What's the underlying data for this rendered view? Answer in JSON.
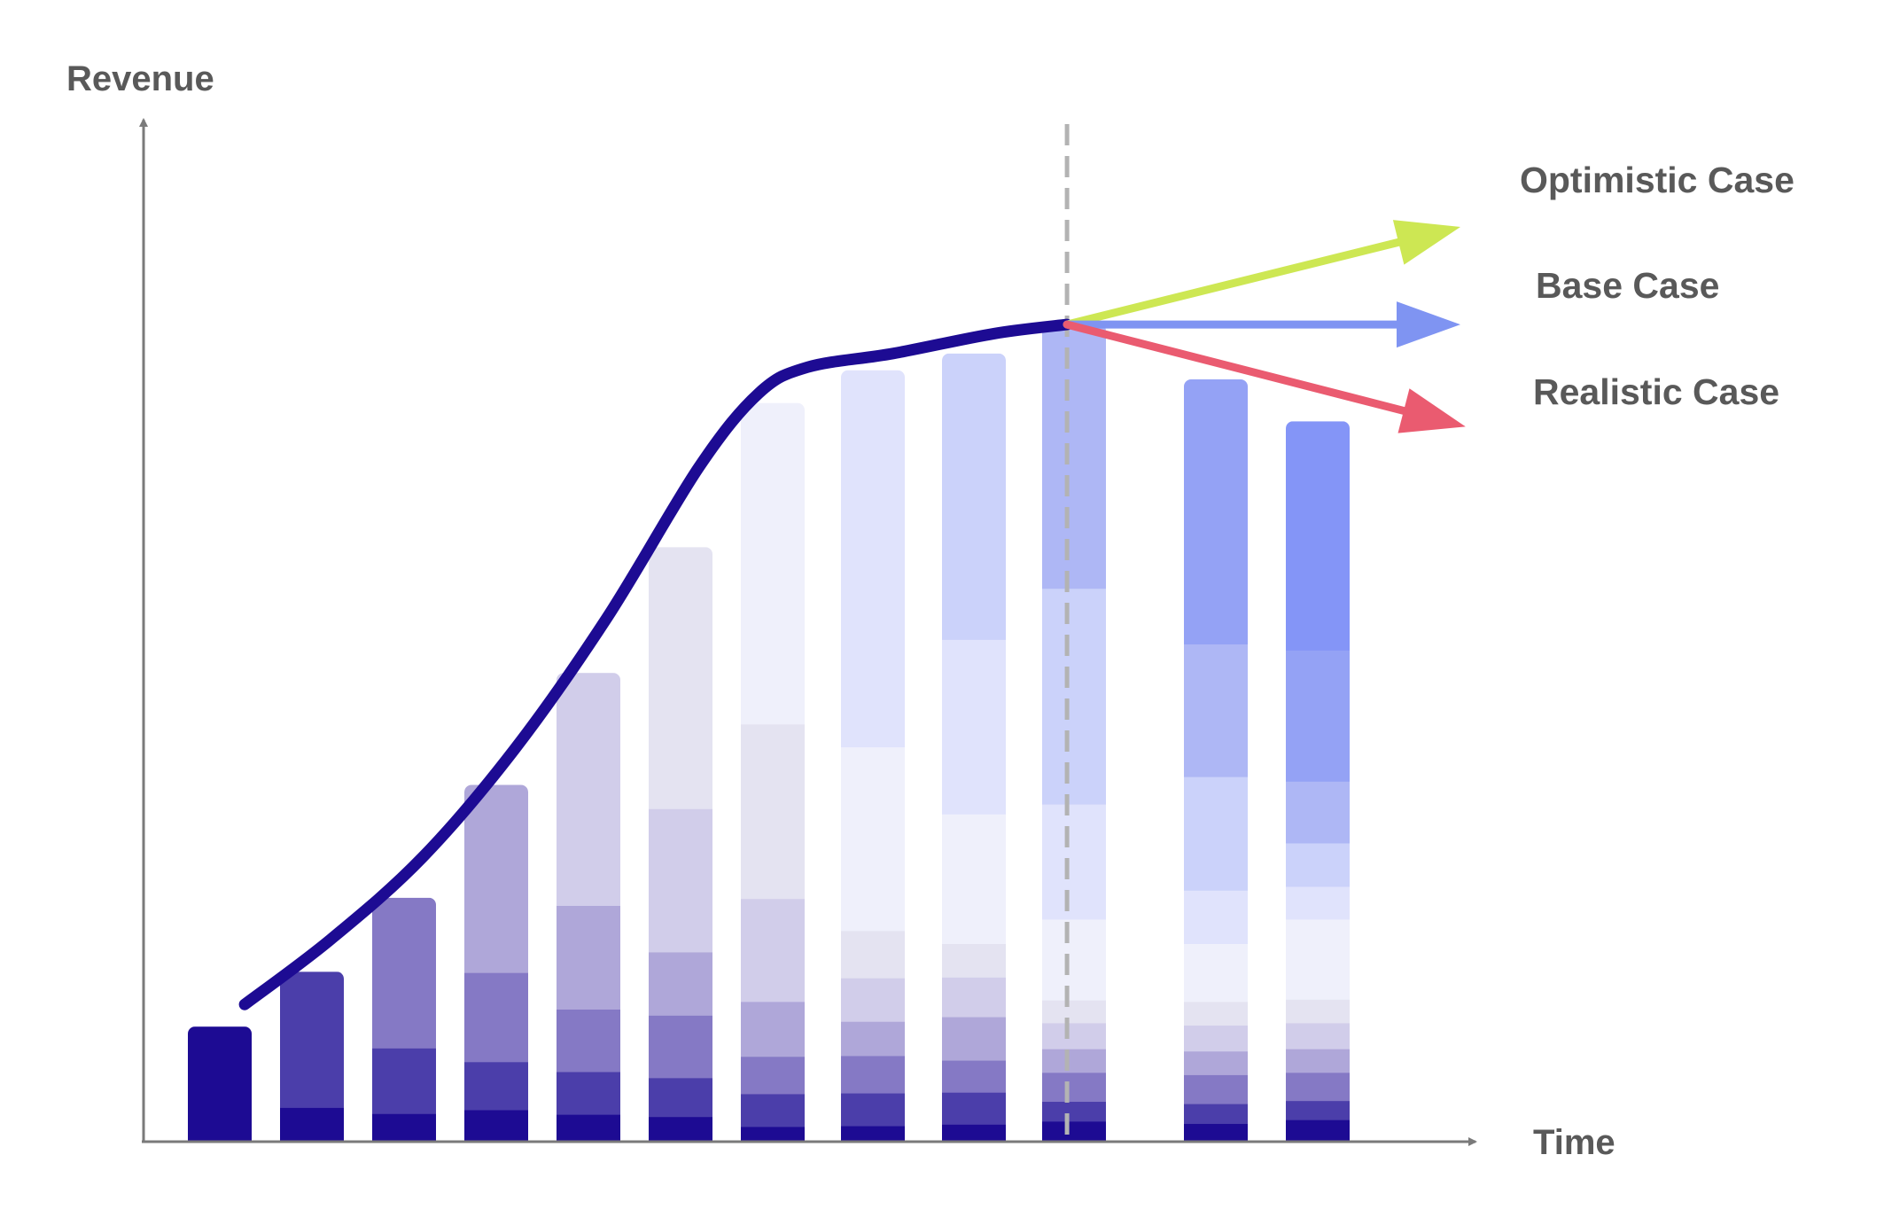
{
  "chart_data": {
    "type": "bar",
    "stacked": true,
    "title": "",
    "xlabel": "Time",
    "ylabel": "Revenue",
    "ylim": [
      0,
      1000
    ],
    "grid": false,
    "legend": "none",
    "layer_colors": [
      "#1d0b93",
      "#4b3eaa",
      "#8579c5",
      "#afa7d9",
      "#d1cdea",
      "#e4e3f1",
      "#eff0fb",
      "#e0e3fc",
      "#cbd2fa",
      "#aeb7f5",
      "#94a2f5",
      "#8495f7"
    ],
    "bars": [
      {
        "segments": [
          151
        ]
      },
      {
        "segments": [
          45,
          178
        ]
      },
      {
        "segments": [
          37,
          86,
          197
        ]
      },
      {
        "segments": [
          42,
          63,
          117,
          246
        ]
      },
      {
        "segments": [
          36,
          56,
          82,
          136,
          305
        ]
      },
      {
        "segments": [
          33,
          51,
          82,
          83,
          188,
          343
        ]
      },
      {
        "segments": [
          20,
          43,
          49,
          72,
          135,
          229,
          421
        ]
      },
      {
        "segments": [
          21,
          43,
          49,
          45,
          57,
          62,
          241,
          494
        ]
      },
      {
        "segments": [
          23,
          42,
          42,
          57,
          52,
          44,
          170,
          229,
          375
        ]
      },
      {
        "segments": [
          27,
          26,
          38,
          31,
          34,
          30,
          106,
          151,
          283,
          347
        ]
      },
      {
        "segments": [
          24,
          26,
          38,
          31,
          34,
          31,
          76,
          70,
          149,
          174,
          347
        ]
      },
      {
        "segments": [
          29,
          25,
          37,
          31,
          34,
          31,
          105,
          43,
          57,
          81,
          172,
          300
        ]
      }
    ],
    "trend_line": {
      "points": [
        [
          0.27,
          180
        ],
        [
          1.2,
          265
        ],
        [
          2.2,
          373
        ],
        [
          3.2,
          515
        ],
        [
          4.2,
          687
        ],
        [
          5.2,
          885
        ],
        [
          5.85,
          982
        ],
        [
          6.35,
          1016
        ],
        [
          7.2,
          1034
        ],
        [
          8.2,
          1060
        ],
        [
          8.93,
          1072
        ]
      ]
    },
    "forecast_divider_x": 8.93,
    "scenarios": [
      {
        "label": "Optimistic Case",
        "color": "#cde753",
        "end": [
          12.4,
          1200
        ]
      },
      {
        "label": "Base Case",
        "color": "#7f94f2",
        "end": [
          12.4,
          1072
        ]
      },
      {
        "label": "Realistic Case",
        "color": "#ea5b70",
        "end": [
          12.45,
          938
        ]
      }
    ]
  }
}
